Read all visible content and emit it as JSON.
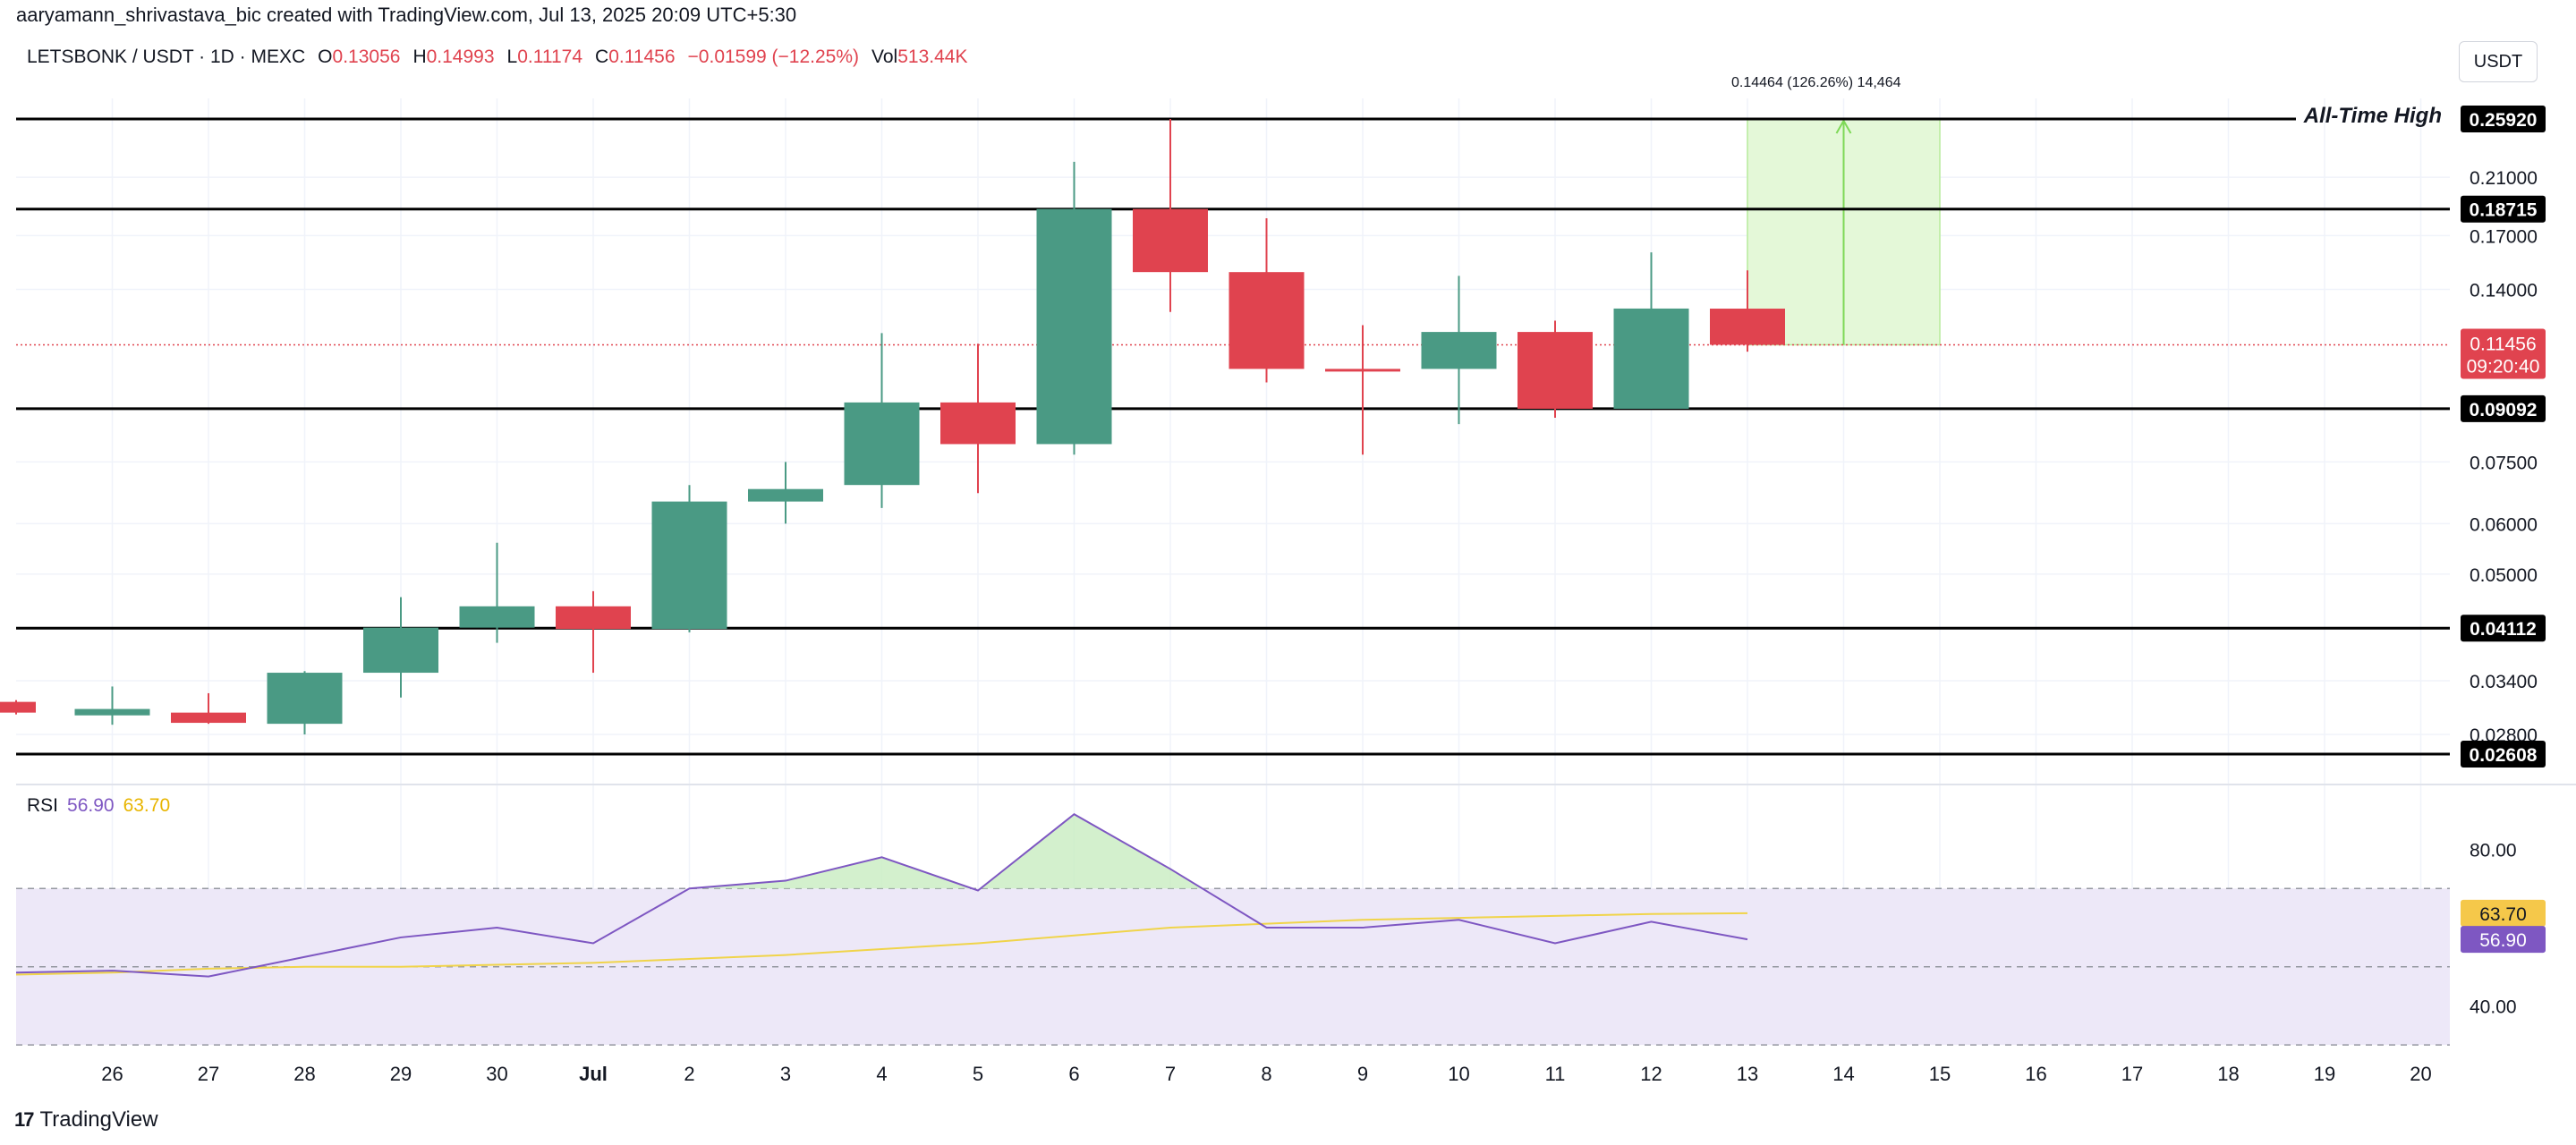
{
  "author_line": "aaryamann_shrivastava_bic created with TradingView.com, Jul 13, 2025 20:09 UTC+5:30",
  "legend": {
    "symbol": "LETSBONK / USDT · 1D · MEXC",
    "open_label": "O",
    "open": "0.13056",
    "high_label": "H",
    "high": "0.14993",
    "low_label": "L",
    "low": "0.11174",
    "close_label": "C",
    "close": "0.11456",
    "change": "−0.01599 (−12.25%)",
    "vol_label": "Vol",
    "vol": "513.44K"
  },
  "currency_button": "USDT",
  "ath_label": "All-Time High",
  "measure_label": "0.14464 (126.26%) 14,464",
  "brand": {
    "logo": "17",
    "name": "TradingView"
  },
  "rsi_legend": {
    "name": "RSI",
    "rsi": "56.90",
    "ma": "63.70"
  },
  "colors": {
    "up": "#4a9a84",
    "down": "#e0434f",
    "rsi": "#7e57c2",
    "rsi_ma": "#f0d44a",
    "band": "#ede8f8",
    "measure_fill": "#e4f8d8"
  },
  "chart_data": {
    "type": "candlestick",
    "price_scale": "log",
    "price_axis_ticks": [
      "0.21000",
      "0.17000",
      "0.14000",
      "0.07500",
      "0.06000",
      "0.05000",
      "0.03400",
      "0.02800"
    ],
    "x_ticks": [
      "26",
      "27",
      "28",
      "29",
      "30",
      "Jul",
      "2",
      "3",
      "4",
      "5",
      "6",
      "7",
      "8",
      "9",
      "10",
      "11",
      "12",
      "13",
      "14",
      "15",
      "16",
      "17",
      "18",
      "19",
      "20"
    ],
    "candles": [
      {
        "x": "25",
        "open": 0.0315,
        "high": 0.0317,
        "low": 0.0301,
        "close": 0.0303
      },
      {
        "x": "26",
        "open": 0.03,
        "high": 0.0333,
        "low": 0.029,
        "close": 0.0307
      },
      {
        "x": "27",
        "open": 0.0303,
        "high": 0.0325,
        "low": 0.0291,
        "close": 0.0292
      },
      {
        "x": "28",
        "open": 0.0291,
        "high": 0.0352,
        "low": 0.028,
        "close": 0.035
      },
      {
        "x": "29",
        "open": 0.035,
        "high": 0.046,
        "low": 0.032,
        "close": 0.0412
      },
      {
        "x": "30",
        "open": 0.0412,
        "high": 0.056,
        "low": 0.039,
        "close": 0.0445
      },
      {
        "x": "Jul",
        "open": 0.0445,
        "high": 0.047,
        "low": 0.035,
        "close": 0.041
      },
      {
        "x": "2",
        "open": 0.041,
        "high": 0.069,
        "low": 0.0405,
        "close": 0.065
      },
      {
        "x": "3",
        "open": 0.065,
        "high": 0.075,
        "low": 0.06,
        "close": 0.068
      },
      {
        "x": "4",
        "open": 0.069,
        "high": 0.1195,
        "low": 0.0635,
        "close": 0.093
      },
      {
        "x": "5",
        "open": 0.093,
        "high": 0.115,
        "low": 0.067,
        "close": 0.08
      },
      {
        "x": "6",
        "open": 0.08,
        "high": 0.222,
        "low": 0.077,
        "close": 0.1872
      },
      {
        "x": "7",
        "open": 0.1872,
        "high": 0.2592,
        "low": 0.129,
        "close": 0.149
      },
      {
        "x": "8",
        "open": 0.149,
        "high": 0.181,
        "low": 0.1,
        "close": 0.105
      },
      {
        "x": "9",
        "open": 0.105,
        "high": 0.123,
        "low": 0.077,
        "close": 0.104
      },
      {
        "x": "10",
        "open": 0.105,
        "high": 0.147,
        "low": 0.086,
        "close": 0.12
      },
      {
        "x": "11",
        "open": 0.12,
        "high": 0.125,
        "low": 0.088,
        "close": 0.0909
      },
      {
        "x": "12",
        "open": 0.0909,
        "high": 0.16,
        "low": 0.0909,
        "close": 0.1306
      },
      {
        "x": "13",
        "open": 0.13056,
        "high": 0.14993,
        "low": 0.11174,
        "close": 0.11456
      }
    ],
    "levels": [
      {
        "price": 0.2592,
        "label": "0.25920"
      },
      {
        "price": 0.18715,
        "label": "0.18715"
      },
      {
        "price": 0.09092,
        "label": "0.09092"
      },
      {
        "price": 0.04112,
        "label": "0.04112"
      },
      {
        "price": 0.02608,
        "label": "0.02608"
      }
    ],
    "last_price": {
      "price": 0.11456,
      "label": "0.11456",
      "countdown": "09:20:40"
    },
    "measure": {
      "x_start": "13",
      "x_end": "15",
      "from": 0.11456,
      "to": 0.2592
    },
    "rsi": {
      "range": [
        25,
        95
      ],
      "band": [
        30,
        70
      ],
      "middle": 50,
      "ticks": [
        "80.00",
        "40.00"
      ],
      "rsi_values": [
        48.5,
        49,
        47.5,
        52.5,
        57.5,
        60,
        56,
        70,
        72,
        78,
        69.5,
        89,
        75,
        60,
        60,
        62,
        56,
        61.5,
        57
      ],
      "rsi_ma_values": [
        48,
        48.5,
        49.5,
        50,
        50,
        50.5,
        51,
        52,
        53,
        54.5,
        56,
        58,
        60,
        61,
        62,
        62.5,
        63,
        63.5,
        63.7
      ],
      "rsi_label": "56.90",
      "ma_label": "63.70"
    }
  }
}
